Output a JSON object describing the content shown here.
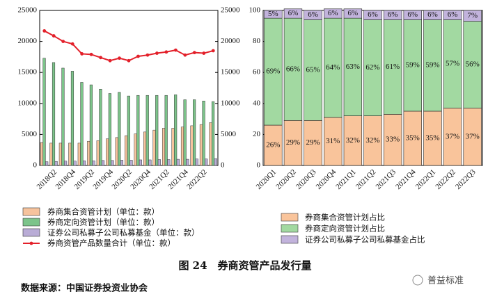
{
  "chart_data": [
    {
      "type": "bar",
      "categories": [
        null,
        "2018Q2",
        null,
        "2018Q4",
        null,
        "2019Q2",
        null,
        "2019Q4",
        null,
        "2020Q2",
        null,
        "2020Q4",
        null,
        "2021Q2",
        null,
        "2021Q4",
        null,
        "2022Q2",
        null
      ],
      "series": [
        {
          "name": "券商集合资管计划（单位：款）",
          "color": "#f6c39d",
          "values": [
            3700,
            3600,
            3600,
            3600,
            3600,
            3900,
            4000,
            4300,
            4500,
            4800,
            5100,
            5400,
            5700,
            6000,
            6000,
            6200,
            6400,
            6600,
            6900
          ]
        },
        {
          "name": "券商定向资管计划（单位：款）",
          "color": "#7cc48a",
          "values": [
            17300,
            16600,
            15700,
            15200,
            13400,
            13000,
            12300,
            11600,
            11800,
            11200,
            11300,
            11300,
            11300,
            11300,
            11400,
            10600,
            10600,
            10400,
            10300
          ]
        },
        {
          "name": "证券公司私募子公司私募基金（单位：款）",
          "color": "#b9acd6",
          "values": [
            600,
            650,
            700,
            700,
            750,
            750,
            800,
            800,
            850,
            850,
            900,
            900,
            950,
            950,
            1000,
            1000,
            1050,
            1050,
            1100
          ]
        },
        {
          "name": "券商资管产品数量合计（单位：款）",
          "color": "#e3202a",
          "type": "line",
          "axis": "y2",
          "values": [
            21700,
            20900,
            20000,
            19600,
            18000,
            17900,
            17400,
            16900,
            17300,
            16900,
            17600,
            17800,
            18100,
            18300,
            18600,
            17800,
            18200,
            18100,
            18500
          ]
        }
      ],
      "ylim": [
        0,
        25000
      ],
      "yticks": [
        0,
        5000,
        10000,
        15000,
        20000,
        25000
      ],
      "y2lim": [
        0,
        25000
      ],
      "y2ticks": [
        0,
        5000,
        10000,
        15000,
        20000,
        25000
      ]
    },
    {
      "type": "stacked_bar",
      "categories": [
        "2020Q1",
        "2020Q2",
        "2020Q3",
        "2020Q4",
        "2021Q1",
        "2021Q2",
        "2021Q3",
        "2021Q4",
        "2022Q1",
        "2022Q2",
        "2022Q3"
      ],
      "series": [
        {
          "name": "券商集合资管计划占比",
          "color": "#f9c49b",
          "values": [
            26,
            29,
            29,
            31,
            32,
            32,
            33,
            35,
            35,
            37,
            37
          ],
          "value_labels": [
            "26%",
            "29%",
            "29%",
            "31%",
            "32%",
            "32%",
            "33%",
            "35%",
            "35%",
            "37%",
            "37%"
          ]
        },
        {
          "name": "券商定向资管计划占比",
          "color": "#a2d9a1",
          "values": [
            69,
            66,
            65,
            64,
            63,
            62,
            61,
            59,
            59,
            57,
            56
          ],
          "value_labels": [
            "69%",
            "66%",
            "65%",
            "64%",
            "63%",
            "62%",
            "61%",
            "59%",
            "59%",
            "57%",
            "56%"
          ]
        },
        {
          "name": "证券公司私募子公司私募基金占比",
          "color": "#c2b3dc",
          "values": [
            5,
            6,
            6,
            6,
            6,
            6,
            6,
            6,
            6,
            6,
            7
          ],
          "value_labels": [
            "5%",
            "6%",
            "6%",
            "6%",
            "6%",
            "6%",
            "6%",
            "6%",
            "6%",
            "6%",
            "7%"
          ]
        }
      ],
      "ylim": [
        0,
        100
      ],
      "yticks": [
        0,
        20,
        40,
        60,
        80,
        100
      ]
    }
  ],
  "caption": "图 24　券商资管产品发行量",
  "source": "数据来源：中国证券投资业协会",
  "watermark": "普益标准"
}
